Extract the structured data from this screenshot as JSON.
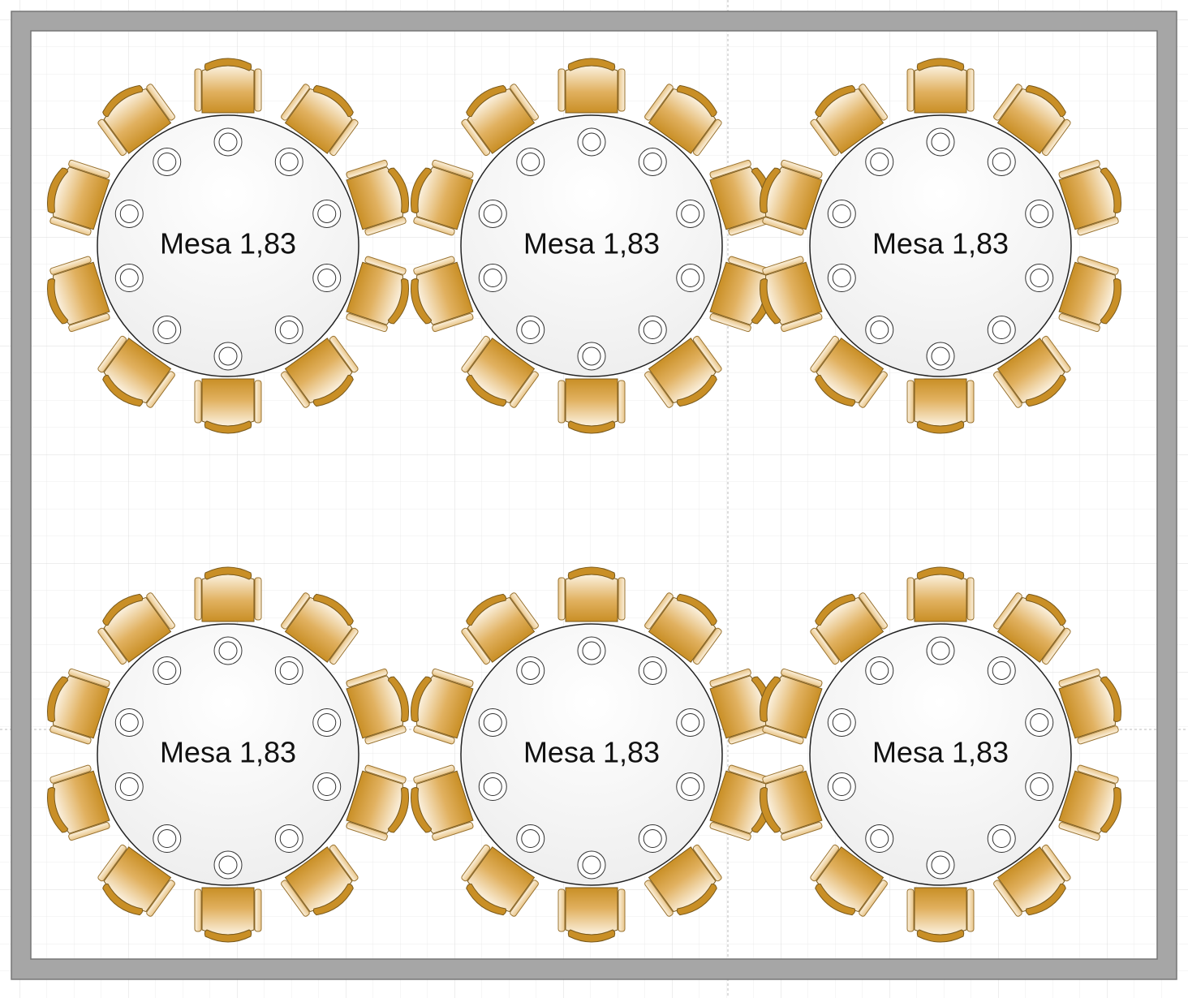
{
  "tables": [
    {
      "label": "Mesa 1,83"
    },
    {
      "label": "Mesa 1,83"
    },
    {
      "label": "Mesa 1,83"
    },
    {
      "label": "Mesa 1,83"
    },
    {
      "label": "Mesa 1,83"
    },
    {
      "label": "Mesa 1,83"
    }
  ]
}
